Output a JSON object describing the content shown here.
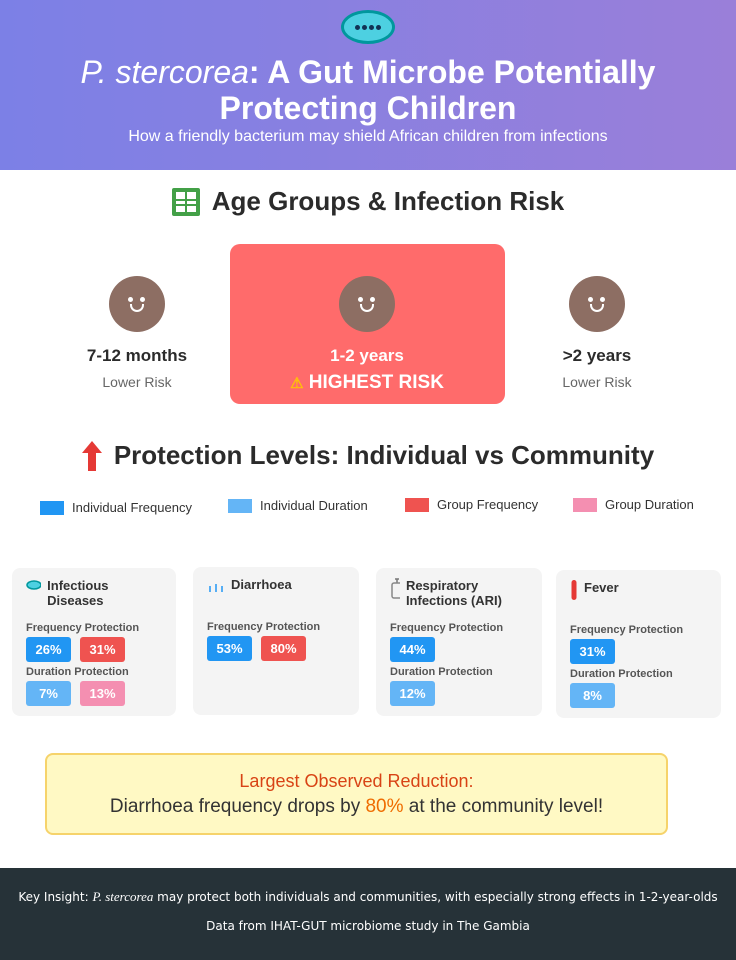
{
  "header": {
    "title_italic": "P. stercorea",
    "title_rest": ": A Gut Microbe Potentially Protecting Children",
    "subtitle": "How a friendly bacterium may shield African children from infections",
    "icon": "microbe-icon"
  },
  "age_section": {
    "title": "Age Groups & Infection Risk",
    "icon": "grid-icon",
    "groups": [
      {
        "label": "7-12 months",
        "risk": "Lower Risk"
      },
      {
        "label": "1-2 years",
        "risk": "HIGHEST RISK",
        "warning_icon": "⚠"
      },
      {
        "label": ">2 years",
        "risk": "Lower Risk"
      }
    ],
    "highlight_color": "#ff6b6b"
  },
  "protection_section": {
    "title": "Protection Levels: Individual vs Community",
    "icon": "arrow-up-icon",
    "legend": [
      {
        "label": "Individual Frequency",
        "color": "#2196f3"
      },
      {
        "label": "Individual Duration",
        "color": "#64b5f6"
      },
      {
        "label": "Group Frequency",
        "color": "#ef5350"
      },
      {
        "label": "Group Duration",
        "color": "#f48fb1"
      }
    ],
    "frequency_label": "Frequency Protection",
    "duration_label": "Duration Protection",
    "cards": [
      {
        "title": "Infectious Diseases",
        "icon": "microbe-icon",
        "frequency": [
          "26%",
          "31%"
        ],
        "duration": [
          "7%",
          "13%"
        ]
      },
      {
        "title": "Diarrhoea",
        "icon": "droplets-icon",
        "frequency": [
          "53%",
          "80%"
        ]
      },
      {
        "title": "Respiratory Infections (ARI)",
        "icon": "inhaler-icon",
        "frequency": [
          "44%"
        ],
        "duration": [
          "12%"
        ]
      },
      {
        "title": "Fever",
        "icon": "thermometer-icon",
        "frequency": [
          "31%"
        ],
        "duration": [
          "8%"
        ]
      }
    ]
  },
  "callout": {
    "heading": "Largest Observed Reduction:",
    "text_before": "Diarrhoea frequency drops by ",
    "value": "80%",
    "text_after": " at the community level!"
  },
  "footer": {
    "insight_prefix": "Key Insight: ",
    "insight_italic": "P. stercorea",
    "insight_rest": " may protect both individuals and communities, with especially strong effects in 1-2-year-olds",
    "source": "Data from IHAT-GUT microbiome study in The Gambia"
  }
}
